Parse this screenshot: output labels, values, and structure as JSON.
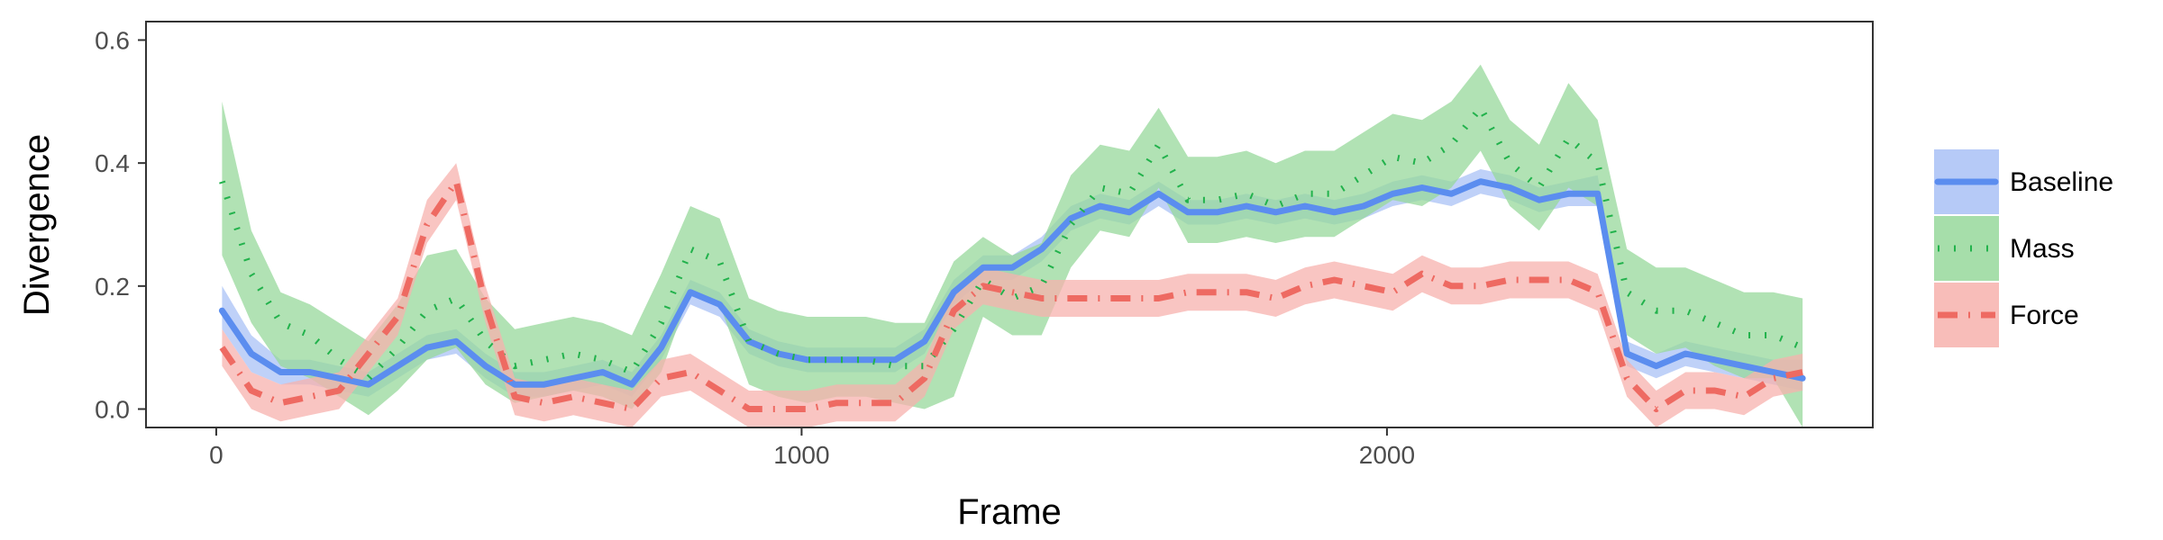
{
  "chart_data": {
    "type": "line",
    "xlabel": "Frame",
    "ylabel": "Divergence",
    "xlim": [
      -120,
      2830
    ],
    "ylim": [
      -0.03,
      0.63
    ],
    "xticks": [
      0,
      1000,
      2000
    ],
    "xtick_labels": [
      "0",
      "1000",
      "2000"
    ],
    "yticks": [
      0.0,
      0.2,
      0.4,
      0.6
    ],
    "ytick_labels": [
      "0.0",
      "0.2",
      "0.4",
      "0.6"
    ],
    "grid": false,
    "legend_position": "right",
    "series": [
      {
        "name": "Baseline",
        "color": "#5B8DEF",
        "band_color": "#A9C1F6",
        "line_style": "solid",
        "x": [
          10,
          60,
          110,
          160,
          210,
          260,
          310,
          360,
          410,
          460,
          510,
          560,
          610,
          660,
          710,
          760,
          810,
          860,
          910,
          960,
          1010,
          1060,
          1110,
          1160,
          1210,
          1260,
          1310,
          1360,
          1410,
          1460,
          1510,
          1560,
          1610,
          1660,
          1710,
          1760,
          1810,
          1860,
          1910,
          1960,
          2010,
          2060,
          2110,
          2160,
          2210,
          2260,
          2310,
          2360,
          2410,
          2460,
          2510,
          2560,
          2610,
          2660,
          2710
        ],
        "y": [
          0.16,
          0.09,
          0.06,
          0.06,
          0.05,
          0.04,
          0.07,
          0.1,
          0.11,
          0.07,
          0.04,
          0.04,
          0.05,
          0.06,
          0.04,
          0.1,
          0.19,
          0.17,
          0.11,
          0.09,
          0.08,
          0.08,
          0.08,
          0.08,
          0.11,
          0.19,
          0.23,
          0.23,
          0.26,
          0.31,
          0.33,
          0.32,
          0.35,
          0.32,
          0.32,
          0.33,
          0.32,
          0.33,
          0.32,
          0.33,
          0.35,
          0.36,
          0.35,
          0.37,
          0.36,
          0.34,
          0.35,
          0.35,
          0.09,
          0.07,
          0.09,
          0.08,
          0.07,
          0.06,
          0.05
        ],
        "lower": [
          0.13,
          0.06,
          0.04,
          0.04,
          0.03,
          0.02,
          0.05,
          0.08,
          0.09,
          0.05,
          0.02,
          0.02,
          0.03,
          0.04,
          0.02,
          0.08,
          0.17,
          0.15,
          0.09,
          0.07,
          0.06,
          0.06,
          0.06,
          0.06,
          0.09,
          0.17,
          0.21,
          0.21,
          0.24,
          0.29,
          0.31,
          0.3,
          0.33,
          0.3,
          0.3,
          0.31,
          0.3,
          0.31,
          0.3,
          0.31,
          0.33,
          0.34,
          0.33,
          0.35,
          0.34,
          0.32,
          0.33,
          0.33,
          0.07,
          0.05,
          0.07,
          0.06,
          0.05,
          0.04,
          0.03
        ],
        "upper": [
          0.2,
          0.12,
          0.08,
          0.08,
          0.07,
          0.06,
          0.09,
          0.12,
          0.13,
          0.09,
          0.06,
          0.06,
          0.07,
          0.08,
          0.06,
          0.12,
          0.21,
          0.19,
          0.13,
          0.11,
          0.1,
          0.1,
          0.1,
          0.1,
          0.13,
          0.21,
          0.25,
          0.25,
          0.28,
          0.33,
          0.35,
          0.34,
          0.37,
          0.34,
          0.34,
          0.35,
          0.34,
          0.35,
          0.34,
          0.35,
          0.37,
          0.38,
          0.37,
          0.39,
          0.38,
          0.36,
          0.37,
          0.38,
          0.11,
          0.09,
          0.11,
          0.1,
          0.09,
          0.08,
          0.08
        ]
      },
      {
        "name": "Mass",
        "color": "#22B24C",
        "band_color": "#97D89B",
        "line_style": "dotted",
        "x": [
          10,
          60,
          110,
          160,
          210,
          260,
          310,
          360,
          410,
          460,
          510,
          560,
          610,
          660,
          710,
          760,
          810,
          860,
          910,
          960,
          1010,
          1060,
          1110,
          1160,
          1210,
          1260,
          1310,
          1360,
          1410,
          1460,
          1510,
          1560,
          1610,
          1660,
          1710,
          1760,
          1810,
          1860,
          1910,
          1960,
          2010,
          2060,
          2110,
          2160,
          2210,
          2260,
          2310,
          2360,
          2410,
          2460,
          2510,
          2560,
          2610,
          2660,
          2710
        ],
        "y": [
          0.37,
          0.22,
          0.14,
          0.12,
          0.08,
          0.05,
          0.1,
          0.16,
          0.18,
          0.11,
          0.07,
          0.08,
          0.09,
          0.08,
          0.06,
          0.14,
          0.26,
          0.24,
          0.11,
          0.09,
          0.08,
          0.08,
          0.08,
          0.07,
          0.07,
          0.13,
          0.21,
          0.18,
          0.2,
          0.3,
          0.36,
          0.35,
          0.43,
          0.34,
          0.34,
          0.35,
          0.33,
          0.35,
          0.35,
          0.38,
          0.41,
          0.4,
          0.43,
          0.49,
          0.4,
          0.36,
          0.44,
          0.4,
          0.19,
          0.16,
          0.16,
          0.14,
          0.12,
          0.12,
          0.1
        ],
        "lower": [
          0.25,
          0.14,
          0.07,
          0.05,
          0.02,
          -0.01,
          0.03,
          0.08,
          0.1,
          0.04,
          0.01,
          0.02,
          0.03,
          0.02,
          0.0,
          0.06,
          0.19,
          0.17,
          0.04,
          0.02,
          0.01,
          0.02,
          0.02,
          0.01,
          0.0,
          0.02,
          0.15,
          0.12,
          0.12,
          0.23,
          0.29,
          0.28,
          0.36,
          0.27,
          0.27,
          0.28,
          0.27,
          0.28,
          0.28,
          0.31,
          0.34,
          0.33,
          0.36,
          0.42,
          0.33,
          0.29,
          0.36,
          0.33,
          0.12,
          0.09,
          0.1,
          0.07,
          0.05,
          0.05,
          -0.03
        ],
        "upper": [
          0.5,
          0.29,
          0.19,
          0.17,
          0.14,
          0.11,
          0.17,
          0.25,
          0.26,
          0.18,
          0.13,
          0.14,
          0.15,
          0.14,
          0.12,
          0.22,
          0.33,
          0.31,
          0.18,
          0.16,
          0.15,
          0.15,
          0.15,
          0.14,
          0.14,
          0.24,
          0.28,
          0.25,
          0.27,
          0.38,
          0.43,
          0.42,
          0.49,
          0.41,
          0.41,
          0.42,
          0.4,
          0.42,
          0.42,
          0.45,
          0.48,
          0.47,
          0.5,
          0.56,
          0.47,
          0.43,
          0.53,
          0.47,
          0.26,
          0.23,
          0.23,
          0.21,
          0.19,
          0.19,
          0.18
        ]
      },
      {
        "name": "Force",
        "color": "#EE6A62",
        "band_color": "#F7B1AD",
        "line_style": "dashdot",
        "x": [
          10,
          60,
          110,
          160,
          210,
          260,
          310,
          360,
          410,
          460,
          510,
          560,
          610,
          660,
          710,
          760,
          810,
          860,
          910,
          960,
          1010,
          1060,
          1110,
          1160,
          1210,
          1260,
          1310,
          1360,
          1410,
          1460,
          1510,
          1560,
          1610,
          1660,
          1710,
          1760,
          1810,
          1860,
          1910,
          1960,
          2010,
          2060,
          2110,
          2160,
          2210,
          2260,
          2310,
          2360,
          2410,
          2460,
          2510,
          2560,
          2610,
          2660,
          2710
        ],
        "y": [
          0.1,
          0.03,
          0.01,
          0.02,
          0.03,
          0.09,
          0.15,
          0.3,
          0.37,
          0.17,
          0.02,
          0.01,
          0.02,
          0.01,
          0.0,
          0.05,
          0.06,
          0.03,
          0.0,
          0.0,
          0.0,
          0.01,
          0.01,
          0.01,
          0.05,
          0.16,
          0.2,
          0.19,
          0.18,
          0.18,
          0.18,
          0.18,
          0.18,
          0.19,
          0.19,
          0.19,
          0.18,
          0.2,
          0.21,
          0.2,
          0.19,
          0.22,
          0.2,
          0.2,
          0.21,
          0.21,
          0.21,
          0.19,
          0.05,
          0.0,
          0.03,
          0.03,
          0.02,
          0.05,
          0.06
        ],
        "lower": [
          0.07,
          0.0,
          -0.02,
          -0.01,
          0.0,
          0.06,
          0.12,
          0.27,
          0.34,
          0.14,
          -0.01,
          -0.02,
          -0.01,
          -0.02,
          -0.03,
          0.02,
          0.03,
          0.0,
          -0.03,
          -0.03,
          -0.03,
          -0.02,
          -0.02,
          -0.02,
          0.02,
          0.13,
          0.17,
          0.16,
          0.15,
          0.15,
          0.15,
          0.15,
          0.15,
          0.16,
          0.16,
          0.16,
          0.15,
          0.17,
          0.18,
          0.17,
          0.16,
          0.19,
          0.17,
          0.17,
          0.18,
          0.18,
          0.18,
          0.16,
          0.02,
          -0.03,
          0.0,
          0.0,
          -0.01,
          0.02,
          0.03
        ],
        "upper": [
          0.13,
          0.06,
          0.04,
          0.05,
          0.06,
          0.12,
          0.18,
          0.34,
          0.4,
          0.2,
          0.05,
          0.04,
          0.05,
          0.04,
          0.03,
          0.08,
          0.09,
          0.06,
          0.03,
          0.03,
          0.03,
          0.04,
          0.04,
          0.04,
          0.08,
          0.19,
          0.23,
          0.22,
          0.21,
          0.21,
          0.21,
          0.21,
          0.21,
          0.22,
          0.22,
          0.22,
          0.21,
          0.23,
          0.24,
          0.23,
          0.22,
          0.25,
          0.23,
          0.23,
          0.24,
          0.24,
          0.24,
          0.22,
          0.08,
          0.03,
          0.06,
          0.06,
          0.05,
          0.08,
          0.09
        ]
      }
    ]
  }
}
